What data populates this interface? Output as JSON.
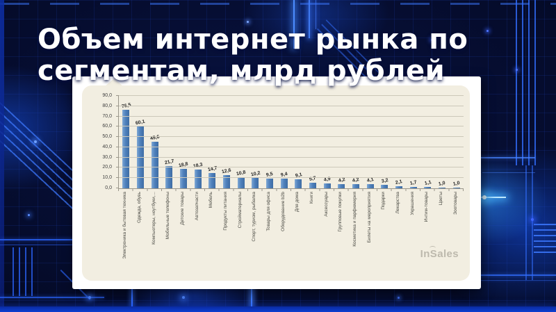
{
  "slide": {
    "title_line1": "Объем интернет рынка по",
    "title_line2": "сегментам, млрд рублей"
  },
  "watermark": {
    "in": "In",
    "s": "S",
    "rest": "ales"
  },
  "chart_data": {
    "type": "bar",
    "title": "Объем интернет рынка по сегментам, млрд рублей",
    "xlabel": "",
    "ylabel": "",
    "ylim": [
      0,
      90
    ],
    "ytick_step": 10,
    "ytick_labels": [
      "90,0",
      "80,0",
      "70,0",
      "60,0",
      "50,0",
      "40,0",
      "30,0",
      "20,0",
      "10,0",
      "0,0"
    ],
    "grid": true,
    "legend": "none",
    "bar_color": "#4f81bd",
    "plot_bg": "#f2eee1",
    "categories": [
      "Электроника и бытовая техника",
      "Одежда, обувь",
      "Компьютеры, ноутбуки,...",
      "Мобильные телефоны",
      "Детские товары",
      "Автозапчасти",
      "Мебель",
      "Продукты питания",
      "Стройматериалы",
      "Спорт, туризм, рыбалка",
      "Товары для офиса",
      "Оборудование b2b",
      "Для дома",
      "Книги",
      "Аксессуары",
      "Групповые покупки",
      "Косметика и парфюмерия",
      "Билеты на мероприятия",
      "Подарки",
      "Лекарства",
      "Украшения",
      "Интим-товары",
      "Цветы",
      "Зоотовары"
    ],
    "values": [
      76.5,
      60.1,
      45.6,
      21.7,
      18.8,
      18.3,
      14.7,
      12.6,
      10.8,
      10.2,
      9.5,
      9.4,
      9.1,
      5.7,
      4.9,
      4.2,
      4.2,
      4.1,
      3.2,
      2.1,
      1.7,
      1.1,
      1.0,
      1.0
    ],
    "data_labels": [
      "76,5",
      "60,1",
      "45,6",
      "21,7",
      "18,8",
      "18,3",
      "14,7",
      "12,6",
      "10,8",
      "10,2",
      "9,5",
      "9,4",
      "9,1",
      "5,7",
      "4,9",
      "4,2",
      "4,2",
      "4,1",
      "3,2",
      "2,1",
      "1,7",
      "1,1",
      "1,0",
      "1,0"
    ]
  }
}
